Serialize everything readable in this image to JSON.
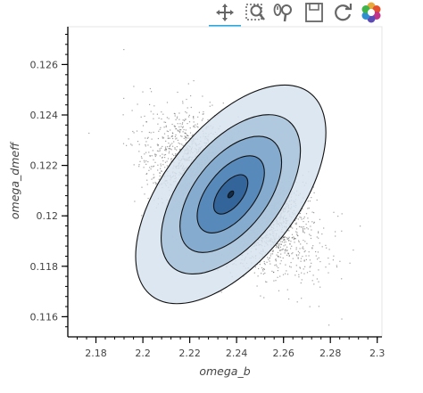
{
  "toolbar": {
    "tools": [
      {
        "name": "pan-tool-icon",
        "active": true
      },
      {
        "name": "box-zoom-tool-icon",
        "active": false
      },
      {
        "name": "wheel-zoom-tool-icon",
        "active": false
      },
      {
        "name": "save-tool-icon",
        "active": false
      },
      {
        "name": "reset-tool-icon",
        "active": false
      },
      {
        "name": "bokeh-logo-icon",
        "active": false
      }
    ],
    "active_color": "#26aae1"
  },
  "chart_data": {
    "type": "scatter",
    "title": "",
    "xlabel": "omega_b",
    "ylabel": "omega_dmeff",
    "xlim": [
      2.168,
      2.302
    ],
    "ylim": [
      0.1152,
      0.1275
    ],
    "xticks": [
      2.18,
      2.2,
      2.22,
      2.24,
      2.26,
      2.28,
      2.3
    ],
    "xtick_labels": [
      "2.18",
      "2.2",
      "2.22",
      "2.24",
      "2.26",
      "2.28",
      "2.3"
    ],
    "yticks": [
      0.116,
      0.118,
      0.12,
      0.122,
      0.124,
      0.126
    ],
    "ytick_labels": [
      "0.116",
      "0.118",
      "0.12",
      "0.122",
      "0.124",
      "0.126"
    ],
    "grid": false,
    "samples": {
      "center": [
        2.2375,
        0.12085
      ],
      "sd_x": 0.0155,
      "sd_y": 0.00135,
      "correlation": -0.55,
      "count": 4500,
      "point_color": "#555555"
    },
    "contours": [
      {
        "level": 1,
        "rx": 0.0395,
        "ry": 0.00255,
        "angle_deg": -38,
        "fill": "#d7e3ee"
      },
      {
        "level": 2,
        "rx": 0.0295,
        "ry": 0.00185,
        "angle_deg": -38,
        "fill": "#a9c3dc"
      },
      {
        "level": 3,
        "rx": 0.0215,
        "ry": 0.00135,
        "angle_deg": -38,
        "fill": "#7ea6cc"
      },
      {
        "level": 4,
        "rx": 0.014,
        "ry": 0.0009,
        "angle_deg": -38,
        "fill": "#4f82b6"
      },
      {
        "level": 5,
        "rx": 0.007,
        "ry": 0.00046,
        "angle_deg": -38,
        "fill": "#2e5f94"
      },
      {
        "level": 6,
        "rx": 0.0012,
        "ry": 8e-05,
        "angle_deg": -38,
        "fill": "#0c2340"
      }
    ],
    "contour_line_color": "#111111"
  }
}
